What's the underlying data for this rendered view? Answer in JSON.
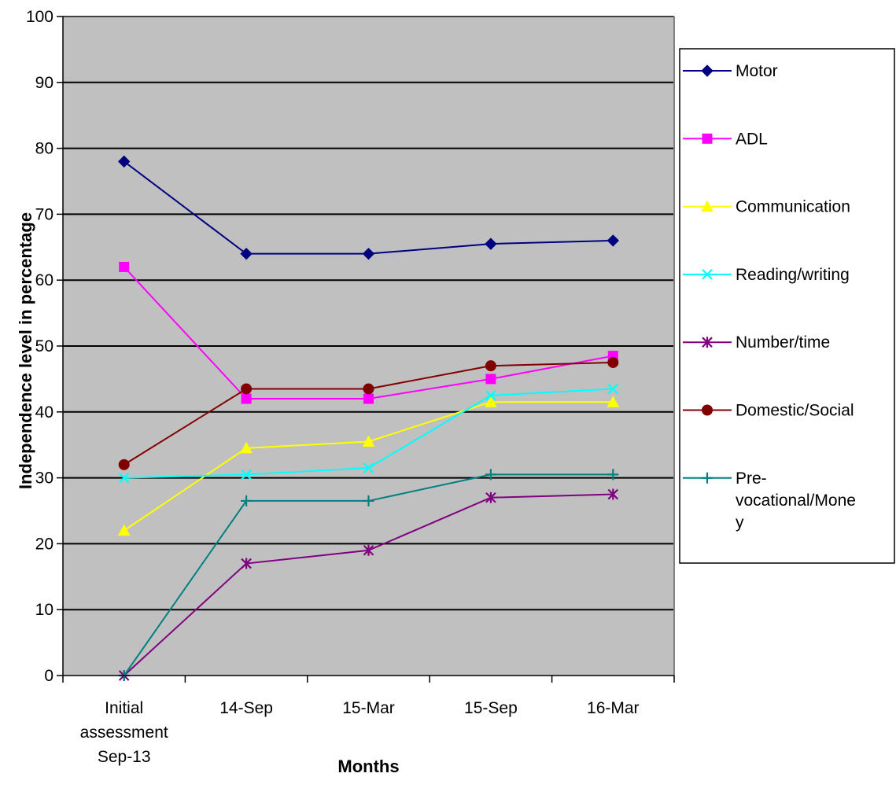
{
  "chart_data": {
    "type": "line",
    "xlabel": "Months",
    "ylabel": "Independence level in percentage",
    "ylim": [
      0,
      100
    ],
    "yticks": [
      0,
      10,
      20,
      30,
      40,
      50,
      60,
      70,
      80,
      90,
      100
    ],
    "grid": true,
    "legend_position": "right",
    "categories": [
      [
        "Initial",
        "assessment",
        "Sep-13"
      ],
      [
        "14-Sep"
      ],
      [
        "15-Mar"
      ],
      [
        "15-Sep"
      ],
      [
        "16-Mar"
      ]
    ],
    "series": [
      {
        "name": "Motor",
        "legend_lines": [
          "Motor"
        ],
        "color": "#000080",
        "marker": "diamond",
        "values": [
          78,
          64,
          64,
          65.5,
          66
        ]
      },
      {
        "name": "ADL",
        "legend_lines": [
          "ADL"
        ],
        "color": "#FF00FF",
        "marker": "square",
        "values": [
          62,
          42,
          42,
          45,
          48.5
        ]
      },
      {
        "name": "Communication",
        "legend_lines": [
          "Communication"
        ],
        "color": "#FFFF00",
        "marker": "triangle",
        "values": [
          22,
          34.5,
          35.5,
          41.5,
          41.5
        ]
      },
      {
        "name": "Reading/writing",
        "legend_lines": [
          "Reading/writing"
        ],
        "color": "#00FFFF",
        "marker": "x",
        "values": [
          30,
          30.5,
          31.5,
          42.5,
          43.5
        ]
      },
      {
        "name": "Number/time",
        "legend_lines": [
          "Number/time"
        ],
        "color": "#800080",
        "marker": "star",
        "values": [
          0,
          17,
          19,
          27,
          27.5
        ]
      },
      {
        "name": "Domestic/Social",
        "legend_lines": [
          "Domestic/Social"
        ],
        "color": "#800000",
        "marker": "circle",
        "values": [
          32,
          43.5,
          43.5,
          47,
          47.5
        ]
      },
      {
        "name": "Pre-vocational/Money",
        "legend_lines": [
          "Pre-",
          "vocational/Mone",
          "y"
        ],
        "color": "#008080",
        "marker": "plus",
        "values": [
          0,
          26.5,
          26.5,
          30.5,
          30.5
        ]
      }
    ],
    "colors": {
      "plot_background": "#C0C0C0",
      "gridline": "#000000"
    }
  }
}
